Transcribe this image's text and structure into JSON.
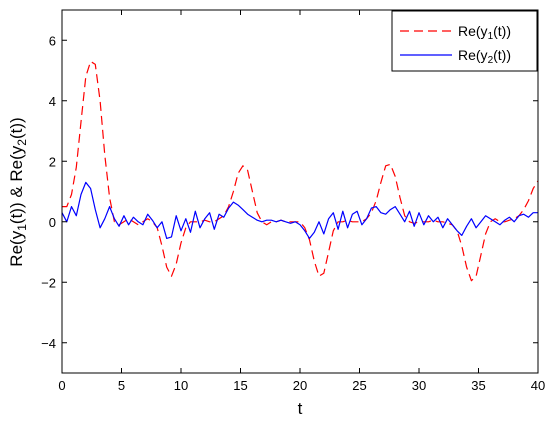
{
  "chart_data": {
    "type": "line",
    "xlabel": "t",
    "ylabel_parts": {
      "pre": "Re(y",
      "sub1": "1",
      "mid": "(t)) & Re(y",
      "sub2": "2",
      "post": "(t))"
    },
    "xlim": [
      0,
      40
    ],
    "ylim": [
      -5,
      7
    ],
    "xticks": [
      0,
      5,
      10,
      15,
      20,
      25,
      30,
      35,
      40
    ],
    "yticks": [
      -4,
      -2,
      0,
      2,
      4,
      6
    ],
    "grid": false,
    "legend_position": "top-right",
    "series": [
      {
        "legend": {
          "pre": "Re(y",
          "sub": "1",
          "post": "(t))"
        },
        "color": "#ff0000",
        "style": "dashed",
        "x": [
          0,
          0.4,
          0.8,
          1.2,
          1.6,
          2.0,
          2.4,
          2.8,
          3.2,
          3.6,
          4.0,
          4.4,
          4.8,
          5.2,
          5.6,
          6.0,
          6.4,
          6.8,
          7.2,
          7.6,
          8.0,
          8.4,
          8.8,
          9.2,
          9.6,
          10.0,
          10.4,
          10.8,
          11.2,
          11.6,
          12.0,
          12.4,
          12.8,
          13.2,
          13.6,
          14.0,
          14.4,
          14.8,
          15.2,
          15.6,
          16.0,
          16.4,
          16.8,
          17.2,
          17.6,
          18.0,
          18.4,
          18.8,
          19.2,
          19.6,
          20.0,
          20.4,
          20.8,
          21.2,
          21.6,
          22.0,
          22.4,
          22.8,
          23.2,
          23.6,
          24.0,
          24.4,
          24.8,
          25.2,
          25.6,
          26.0,
          26.4,
          26.8,
          27.2,
          27.6,
          28.0,
          28.4,
          28.8,
          29.2,
          29.6,
          30.0,
          30.4,
          30.8,
          31.2,
          31.6,
          32.0,
          32.4,
          32.8,
          33.2,
          33.6,
          34.0,
          34.4,
          34.8,
          35.2,
          35.6,
          36.0,
          36.4,
          36.8,
          37.2,
          37.6,
          38.0,
          38.4,
          38.8,
          39.2,
          39.6,
          40.0
        ],
        "y": [
          0.5,
          0.5,
          0.9,
          1.8,
          3.3,
          4.8,
          5.3,
          5.2,
          4.0,
          2.2,
          0.8,
          0.0,
          -0.1,
          0.0,
          0.1,
          0.0,
          -0.1,
          0.0,
          0.1,
          0.0,
          -0.2,
          -0.8,
          -1.5,
          -1.8,
          -1.4,
          -0.7,
          -0.2,
          0.0,
          0.0,
          0.0,
          0.05,
          0.0,
          0.0,
          0.1,
          0.2,
          0.5,
          1.0,
          1.6,
          1.85,
          1.7,
          1.0,
          0.3,
          0.0,
          -0.1,
          0.0,
          0.0,
          0.05,
          0.0,
          0.0,
          0.0,
          0.0,
          -0.2,
          -0.6,
          -1.3,
          -1.8,
          -1.7,
          -1.0,
          -0.3,
          0.0,
          0.0,
          0.05,
          0.0,
          0.0,
          0.0,
          0.1,
          0.3,
          0.7,
          1.3,
          1.85,
          1.9,
          1.5,
          0.8,
          0.2,
          0.0,
          -0.05,
          0.0,
          0.0,
          0.0,
          0.05,
          0.0,
          0.0,
          -0.05,
          -0.1,
          -0.3,
          -0.8,
          -1.5,
          -1.95,
          -1.8,
          -1.1,
          -0.4,
          0.0,
          0.1,
          0.0,
          0.0,
          0.05,
          0.1,
          0.2,
          0.4,
          0.7,
          1.1,
          1.35
        ]
      },
      {
        "legend": {
          "pre": "Re(y",
          "sub": "2",
          "post": "(t))"
        },
        "color": "#0000ff",
        "style": "solid",
        "x": [
          0,
          0.4,
          0.8,
          1.2,
          1.6,
          2.0,
          2.4,
          2.8,
          3.2,
          3.6,
          4.0,
          4.4,
          4.8,
          5.2,
          5.6,
          6.0,
          6.4,
          6.8,
          7.2,
          7.6,
          8.0,
          8.4,
          8.8,
          9.2,
          9.6,
          10.0,
          10.4,
          10.8,
          11.2,
          11.6,
          12.0,
          12.4,
          12.8,
          13.2,
          13.6,
          14.0,
          14.4,
          14.8,
          15.2,
          15.6,
          16.0,
          16.4,
          16.8,
          17.2,
          17.6,
          18.0,
          18.4,
          18.8,
          19.2,
          19.6,
          20.0,
          20.4,
          20.8,
          21.2,
          21.6,
          22.0,
          22.4,
          22.8,
          23.2,
          23.6,
          24.0,
          24.4,
          24.8,
          25.2,
          25.6,
          26.0,
          26.4,
          26.8,
          27.2,
          27.6,
          28.0,
          28.4,
          28.8,
          29.2,
          29.6,
          30.0,
          30.4,
          30.8,
          31.2,
          31.6,
          32.0,
          32.4,
          32.8,
          33.2,
          33.6,
          34.0,
          34.4,
          34.8,
          35.2,
          35.6,
          36.0,
          36.4,
          36.8,
          37.2,
          37.6,
          38.0,
          38.4,
          38.8,
          39.2,
          39.6,
          40.0
        ],
        "y": [
          0.3,
          0.0,
          0.5,
          0.2,
          0.9,
          1.3,
          1.1,
          0.4,
          -0.2,
          0.1,
          0.5,
          0.1,
          -0.15,
          0.2,
          -0.1,
          0.15,
          0.0,
          -0.1,
          0.25,
          0.05,
          -0.2,
          0.0,
          -0.55,
          -0.5,
          0.2,
          -0.3,
          0.1,
          -0.35,
          0.35,
          -0.2,
          0.1,
          0.3,
          -0.25,
          0.25,
          0.15,
          0.45,
          0.65,
          0.55,
          0.4,
          0.25,
          0.15,
          0.05,
          0.0,
          0.05,
          0.05,
          0.0,
          0.05,
          0.0,
          -0.05,
          0.0,
          -0.1,
          -0.3,
          -0.55,
          -0.35,
          0.0,
          -0.4,
          0.1,
          0.3,
          -0.25,
          0.35,
          -0.2,
          0.25,
          0.35,
          -0.1,
          0.1,
          0.45,
          0.5,
          0.3,
          0.25,
          0.4,
          0.5,
          0.25,
          0.0,
          0.35,
          -0.15,
          0.3,
          -0.1,
          0.2,
          0.0,
          0.15,
          -0.2,
          0.1,
          -0.1,
          -0.3,
          -0.45,
          -0.15,
          0.1,
          -0.2,
          0.0,
          0.2,
          0.1,
          0.0,
          -0.1,
          0.05,
          0.15,
          0.0,
          0.2,
          0.25,
          0.15,
          0.3,
          0.3
        ]
      }
    ]
  }
}
